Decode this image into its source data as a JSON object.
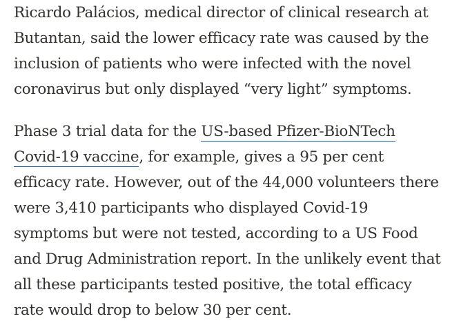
{
  "article": {
    "paragraph_1": "Ricardo Palácios, medical director of clinical research at Butantan, said the lower efficacy rate was caused by the inclusion of patients who were infected with the novel coronavirus but only displayed “very light” symptoms.",
    "paragraph_2": {
      "before_link": "Phase 3 trial data for the ",
      "link_text": "US-based Pfizer-BioNTech Covid-19 vaccine",
      "after_link": ", for example, gives a 95 per cent efficacy rate. However, out of the 44,000 volunteers there were 3,410 participants who displayed Covid-19 symptoms but were not tested, according to a US Food and Drug Administration report. In the unlikely event that all these participants tested positive, the total efficacy rate would drop to below 30 per cent."
    }
  },
  "colors": {
    "text": "#33302e",
    "link_underline": "#0f5499",
    "background": "#ffffff"
  }
}
